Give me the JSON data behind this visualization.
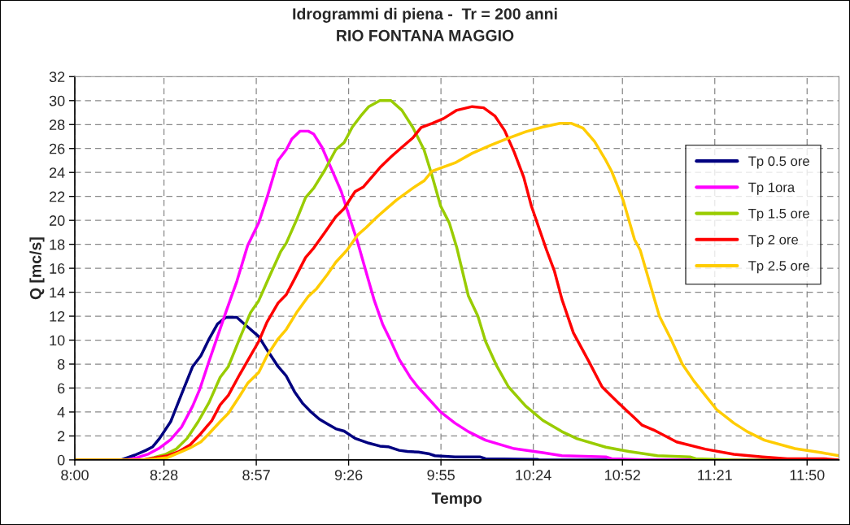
{
  "chart_data": {
    "type": "line",
    "title": "Idrogrammi di piena -  Tr = 200 anni\nRIO FONTANA MAGGIO",
    "xlabel": "Tempo",
    "ylabel": "Q [mc/s]",
    "xlim": [
      8,
      12
    ],
    "ylim": [
      0,
      32
    ],
    "xticks": [
      {
        "value": 8,
        "label": "8:00"
      },
      {
        "value": 8.4667,
        "label": "8:28"
      },
      {
        "value": 8.95,
        "label": "8:57"
      },
      {
        "value": 9.4333,
        "label": "9:26"
      },
      {
        "value": 9.9167,
        "label": "9:55"
      },
      {
        "value": 10.4,
        "label": "10:24"
      },
      {
        "value": 10.8667,
        "label": "10:52"
      },
      {
        "value": 11.35,
        "label": "11:21"
      },
      {
        "value": 11.8333,
        "label": "11:50"
      }
    ],
    "yticks": [
      0,
      2,
      4,
      6,
      8,
      10,
      12,
      14,
      16,
      18,
      20,
      22,
      24,
      26,
      28,
      30,
      32
    ],
    "grid": true,
    "legend": "right",
    "marker": "none",
    "line_style": "solid",
    "series": [
      {
        "name": "Tp 0.5 ore",
        "color": "#000080",
        "x": [
          8,
          8.242,
          8.314,
          8.372,
          8.408,
          8.444,
          8.502,
          8.559,
          8.617,
          8.66,
          8.703,
          8.747,
          8.79,
          8.848,
          8.905,
          8.963,
          9.006,
          9.064,
          9.107,
          9.15,
          9.194,
          9.237,
          9.28,
          9.323,
          9.366,
          9.41,
          9.467,
          9.539,
          9.597,
          9.64,
          9.698,
          9.741,
          9.799,
          9.857,
          9.885,
          9.99,
          10.12,
          10.15,
          10.42,
          10.43,
          12
        ],
        "values": [
          0,
          0,
          0.4,
          0.8,
          1.1,
          1.8,
          3.2,
          5.5,
          7.8,
          8.7,
          10.1,
          11.35,
          11.9,
          11.9,
          11.1,
          10.3,
          9.2,
          7.8,
          7.0,
          5.7,
          4.7,
          4.0,
          3.4,
          3.0,
          2.6,
          2.4,
          1.8,
          1.4,
          1.15,
          1.1,
          0.8,
          0.7,
          0.65,
          0.5,
          0.35,
          0.25,
          0.25,
          0.1,
          0.05,
          0,
          0
        ]
      },
      {
        "name": "Tp 1ora",
        "color": "#ff00ff",
        "x": [
          8,
          8.271,
          8.329,
          8.386,
          8.444,
          8.502,
          8.559,
          8.617,
          8.653,
          8.703,
          8.747,
          8.79,
          8.848,
          8.905,
          8.963,
          9.006,
          9.064,
          9.107,
          9.136,
          9.179,
          9.222,
          9.251,
          9.294,
          9.338,
          9.395,
          9.439,
          9.482,
          9.539,
          9.568,
          9.611,
          9.655,
          9.698,
          9.756,
          9.795,
          9.915,
          9.99,
          10.06,
          10.15,
          10.3,
          10.45,
          10.55,
          10.78,
          10.81,
          11.0,
          12
        ],
        "values": [
          0,
          0,
          0.2,
          0.5,
          1.0,
          1.7,
          2.75,
          4.5,
          5.85,
          8.25,
          10.3,
          12.3,
          14.9,
          17.9,
          19.8,
          21.9,
          25.0,
          25.9,
          26.8,
          27.45,
          27.45,
          27.2,
          26.1,
          24.5,
          22.4,
          20.2,
          18.1,
          14.9,
          13.3,
          11.35,
          9.9,
          8.4,
          6.9,
          6.1,
          4.0,
          3.07,
          2.36,
          1.65,
          0.94,
          0.6,
          0.35,
          0.25,
          0.1,
          0,
          0
        ]
      },
      {
        "name": "Tp 1.5 ore",
        "color": "#99cc00",
        "x": [
          8,
          8.357,
          8.415,
          8.473,
          8.53,
          8.588,
          8.646,
          8.703,
          8.761,
          8.804,
          8.862,
          8.92,
          8.963,
          9.021,
          9.078,
          9.107,
          9.165,
          9.208,
          9.251,
          9.309,
          9.366,
          9.41,
          9.453,
          9.496,
          9.539,
          9.597,
          9.655,
          9.712,
          9.77,
          9.828,
          9.868,
          9.915,
          9.96,
          10.0,
          10.06,
          10.11,
          10.15,
          10.21,
          10.27,
          10.36,
          10.45,
          10.55,
          10.63,
          10.78,
          10.9,
          11.05,
          11.22,
          11.25,
          11.45,
          12
        ],
        "values": [
          0,
          0,
          0.2,
          0.45,
          0.9,
          1.8,
          3.2,
          4.8,
          6.9,
          7.8,
          10.1,
          12.3,
          13.3,
          15.4,
          17.4,
          18.1,
          20.2,
          21.9,
          22.7,
          24.2,
          25.9,
          26.5,
          27.8,
          28.7,
          29.5,
          30.0,
          30.0,
          29.2,
          27.75,
          25.9,
          23.85,
          21.2,
          19.8,
          17.7,
          13.7,
          12.0,
          9.9,
          7.8,
          6.1,
          4.5,
          3.3,
          2.36,
          1.77,
          1.06,
          0.7,
          0.35,
          0.25,
          0.1,
          0,
          0
        ]
      },
      {
        "name": "Tp 2 ore",
        "color": "#ff0000",
        "x": [
          8,
          8.357,
          8.43,
          8.487,
          8.545,
          8.603,
          8.66,
          8.718,
          8.761,
          8.804,
          8.862,
          8.92,
          8.963,
          9.006,
          9.064,
          9.107,
          9.15,
          9.208,
          9.251,
          9.309,
          9.366,
          9.41,
          9.467,
          9.511,
          9.597,
          9.655,
          9.712,
          9.77,
          9.813,
          9.87,
          9.93,
          10.0,
          10.08,
          10.14,
          10.2,
          10.25,
          10.3,
          10.35,
          10.39,
          10.47,
          10.51,
          10.55,
          10.61,
          10.69,
          10.76,
          10.85,
          10.93,
          10.97,
          11.03,
          11.15,
          11.3,
          11.45,
          11.6,
          11.73,
          11.92,
          12
        ],
        "values": [
          0,
          0,
          0.2,
          0.35,
          0.7,
          1.25,
          2.2,
          3.3,
          4.6,
          5.4,
          7.1,
          8.7,
          9.9,
          11.5,
          13.1,
          13.8,
          15.1,
          16.9,
          17.7,
          19.0,
          20.3,
          21.0,
          22.4,
          22.8,
          24.4,
          25.3,
          26.1,
          26.9,
          27.75,
          28.1,
          28.5,
          29.2,
          29.5,
          29.4,
          28.7,
          27.5,
          25.7,
          23.6,
          21.2,
          17.5,
          15.8,
          13.4,
          10.6,
          8.25,
          6.1,
          4.7,
          3.5,
          2.9,
          2.5,
          1.5,
          0.9,
          0.47,
          0.25,
          0.1,
          0.1,
          0
        ]
      },
      {
        "name": "Tp 2.5 ore",
        "color": "#ffcc00",
        "x": [
          8,
          8.357,
          8.43,
          8.487,
          8.545,
          8.603,
          8.66,
          8.703,
          8.761,
          8.804,
          8.862,
          8.905,
          8.963,
          9.006,
          9.064,
          9.107,
          9.165,
          9.222,
          9.266,
          9.323,
          9.366,
          9.424,
          9.482,
          9.525,
          9.583,
          9.626,
          9.684,
          9.77,
          9.828,
          9.87,
          9.99,
          10.08,
          10.18,
          10.26,
          10.36,
          10.45,
          10.54,
          10.6,
          10.66,
          10.72,
          10.78,
          10.81,
          10.87,
          10.93,
          10.96,
          11.02,
          11.06,
          11.12,
          11.18,
          11.24,
          11.3,
          11.36,
          11.45,
          11.52,
          11.61,
          11.77,
          11.91,
          12
        ],
        "values": [
          0,
          0,
          0.1,
          0.2,
          0.6,
          1.0,
          1.5,
          2.2,
          3.2,
          3.9,
          5.3,
          6.4,
          7.3,
          8.7,
          10.1,
          10.9,
          12.4,
          13.65,
          14.3,
          15.5,
          16.5,
          17.5,
          18.8,
          19.4,
          20.3,
          20.9,
          21.7,
          22.7,
          23.3,
          24.1,
          24.8,
          25.6,
          26.3,
          26.8,
          27.4,
          27.8,
          28.1,
          28.1,
          27.7,
          26.6,
          25.0,
          24.1,
          21.7,
          18.4,
          17.5,
          14.2,
          12.0,
          10.1,
          8.0,
          6.6,
          5.4,
          4.2,
          3.07,
          2.36,
          1.65,
          0.94,
          0.6,
          0.35
        ]
      }
    ]
  }
}
